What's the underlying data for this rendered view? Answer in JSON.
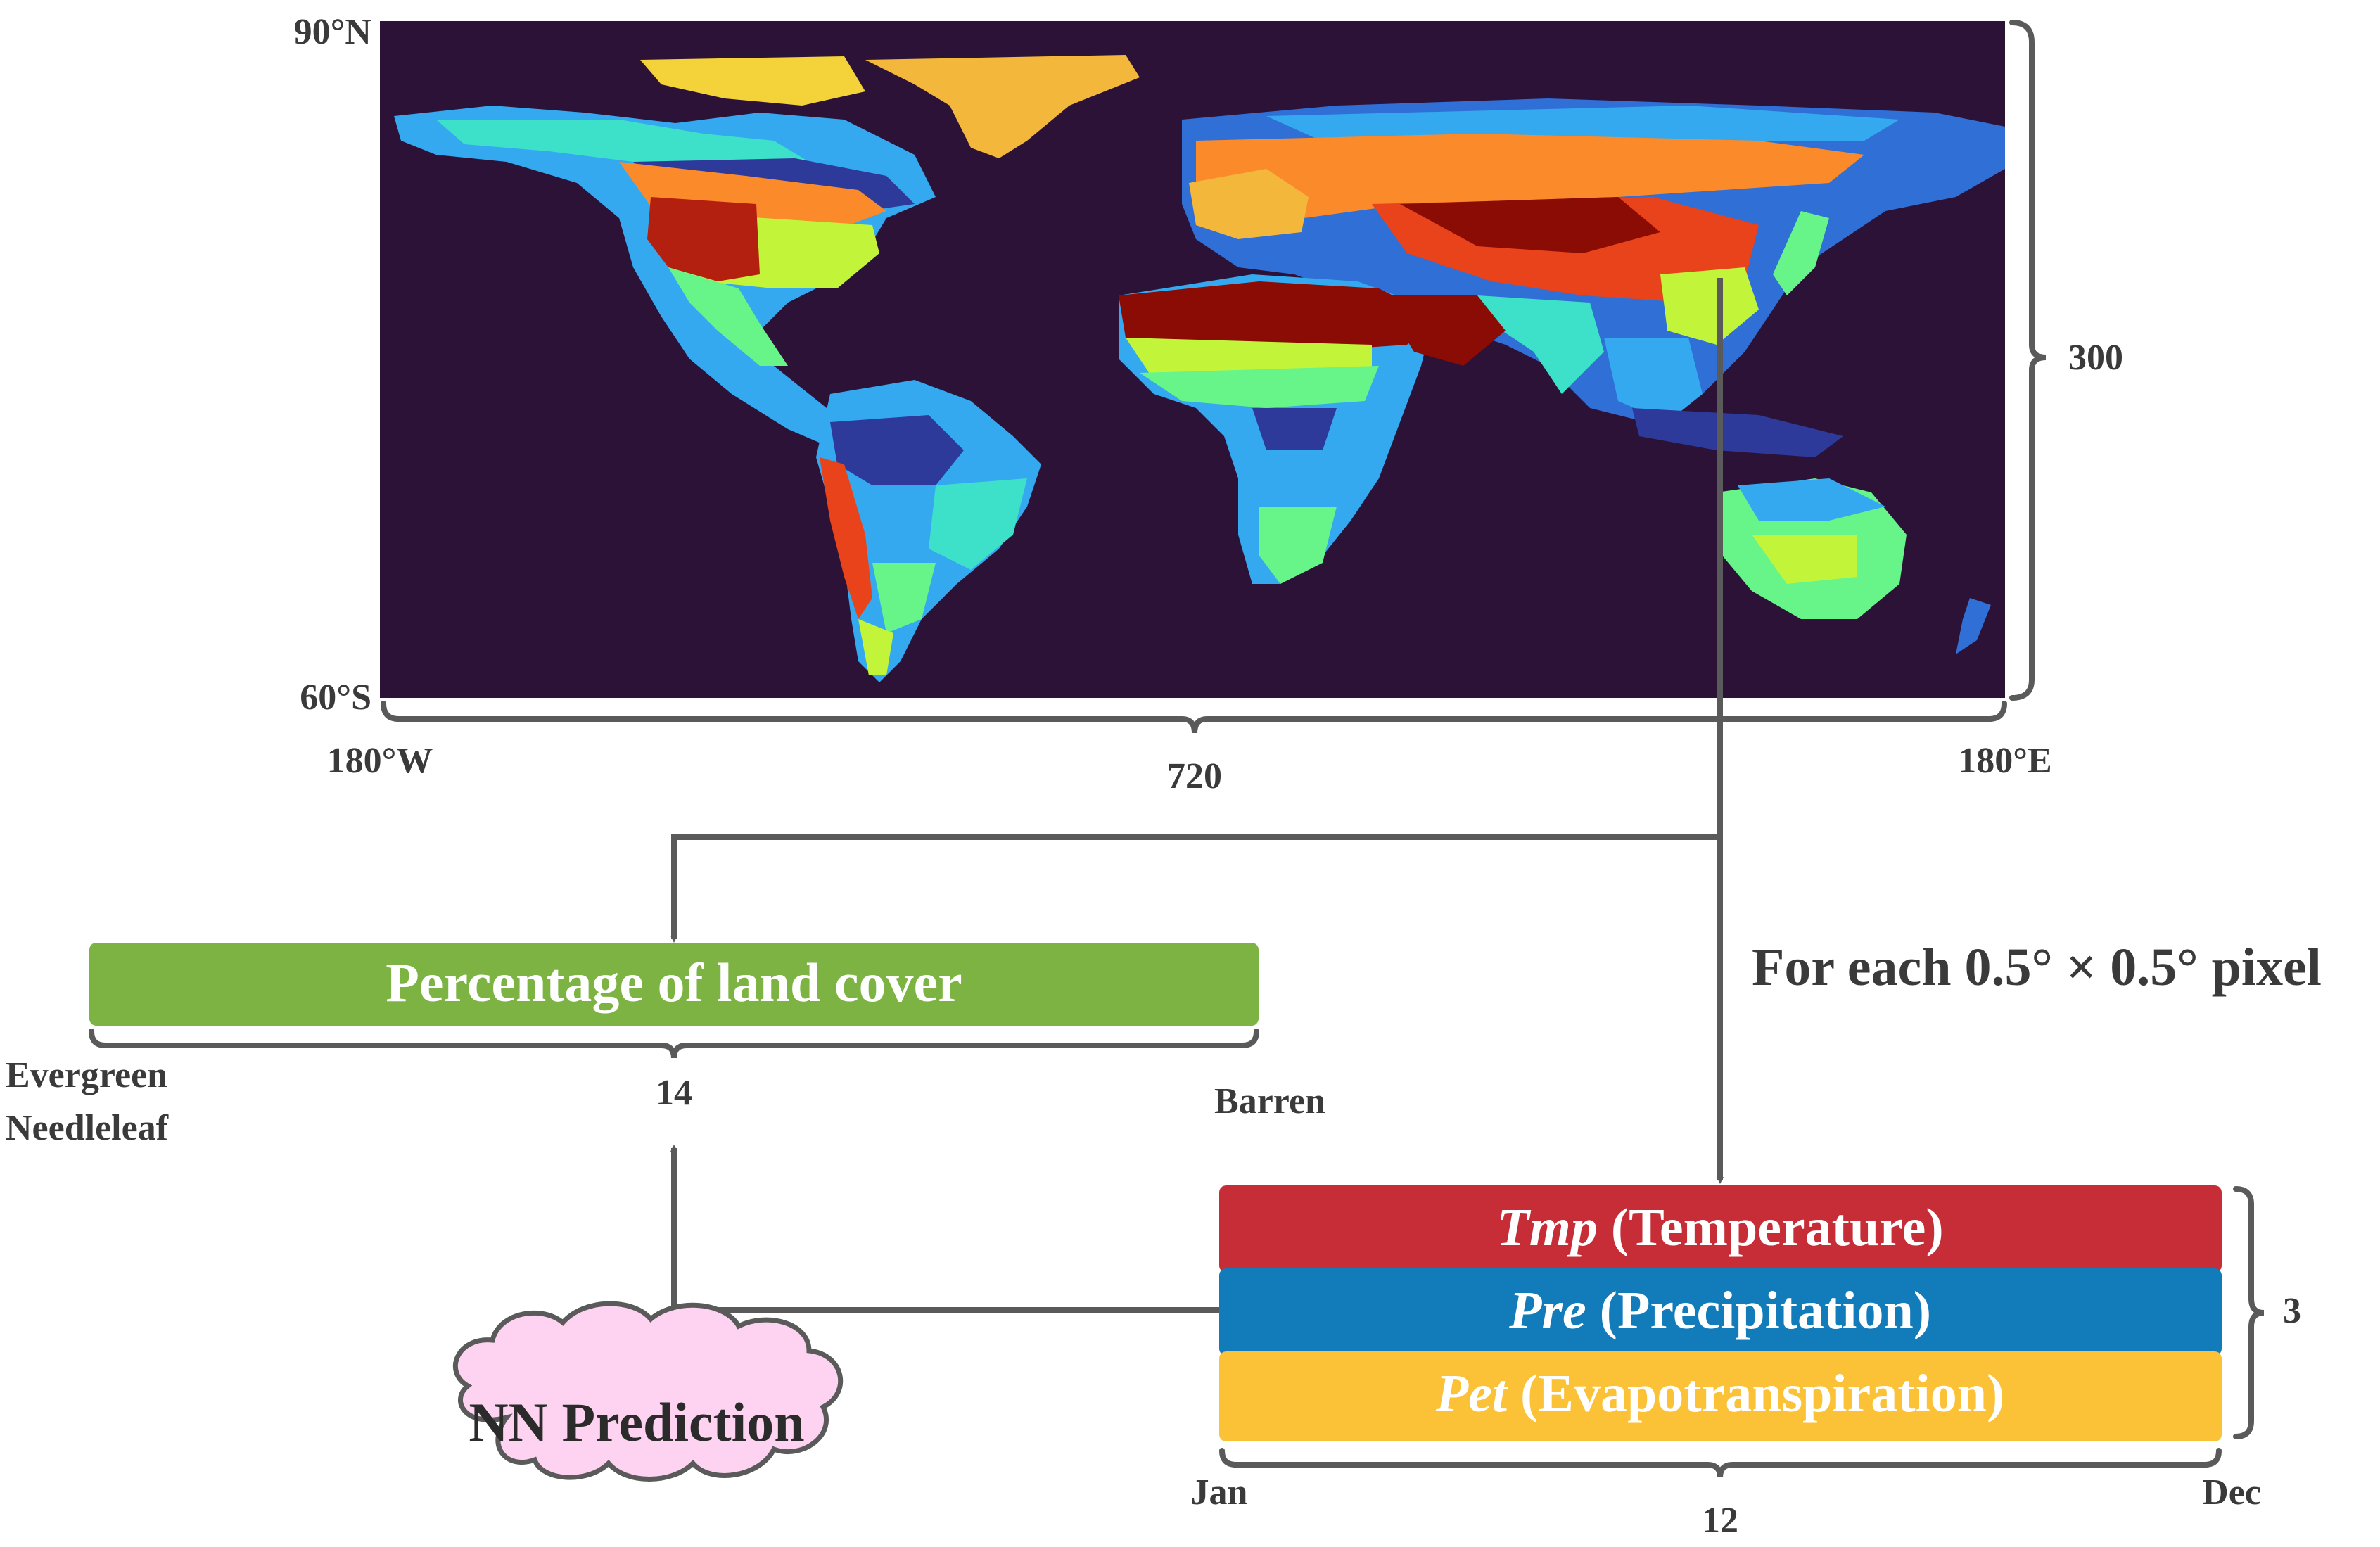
{
  "map": {
    "lat_top": "90°N",
    "lat_bottom": "60°S",
    "lon_left": "180°W",
    "lon_right": "180°E",
    "width_cells": "720",
    "height_cells": "300",
    "ocean_color": "#2d1238",
    "land_palette": [
      "#2d3a9a",
      "#2f6fd6",
      "#34a9f0",
      "#3de0c9",
      "#67f58a",
      "#c2f53a",
      "#f3d23a",
      "#fb8a2a",
      "#e8431b",
      "#b3200f",
      "#8a0c04"
    ]
  },
  "annotation": {
    "pixel_note": "For each 0.5° × 0.5° pixel"
  },
  "land_cover": {
    "bar_label": "Percentage of land cover",
    "bar_color": "#7cb342",
    "first_class": [
      "Evergreen",
      "Needleleaf"
    ],
    "last_class": "Barren",
    "count": "14"
  },
  "climate": {
    "bars": [
      {
        "abbr": "Tmp",
        "name": "(Temperature)",
        "color": "#c62d37"
      },
      {
        "abbr": "Pre",
        "name": "(Precipitation)",
        "color": "#117cb9"
      },
      {
        "abbr": "Pet",
        "name": "(Evapotranspiration)",
        "color": "#fbc237"
      }
    ],
    "variable_count": "3",
    "month_start": "Jan",
    "month_end": "Dec",
    "month_count": "12"
  },
  "prediction": {
    "label": "NN Prediction",
    "color": "#fdd3f1"
  },
  "colors": {
    "connector": "#5a5a5a",
    "text": "#3a3a3a"
  }
}
